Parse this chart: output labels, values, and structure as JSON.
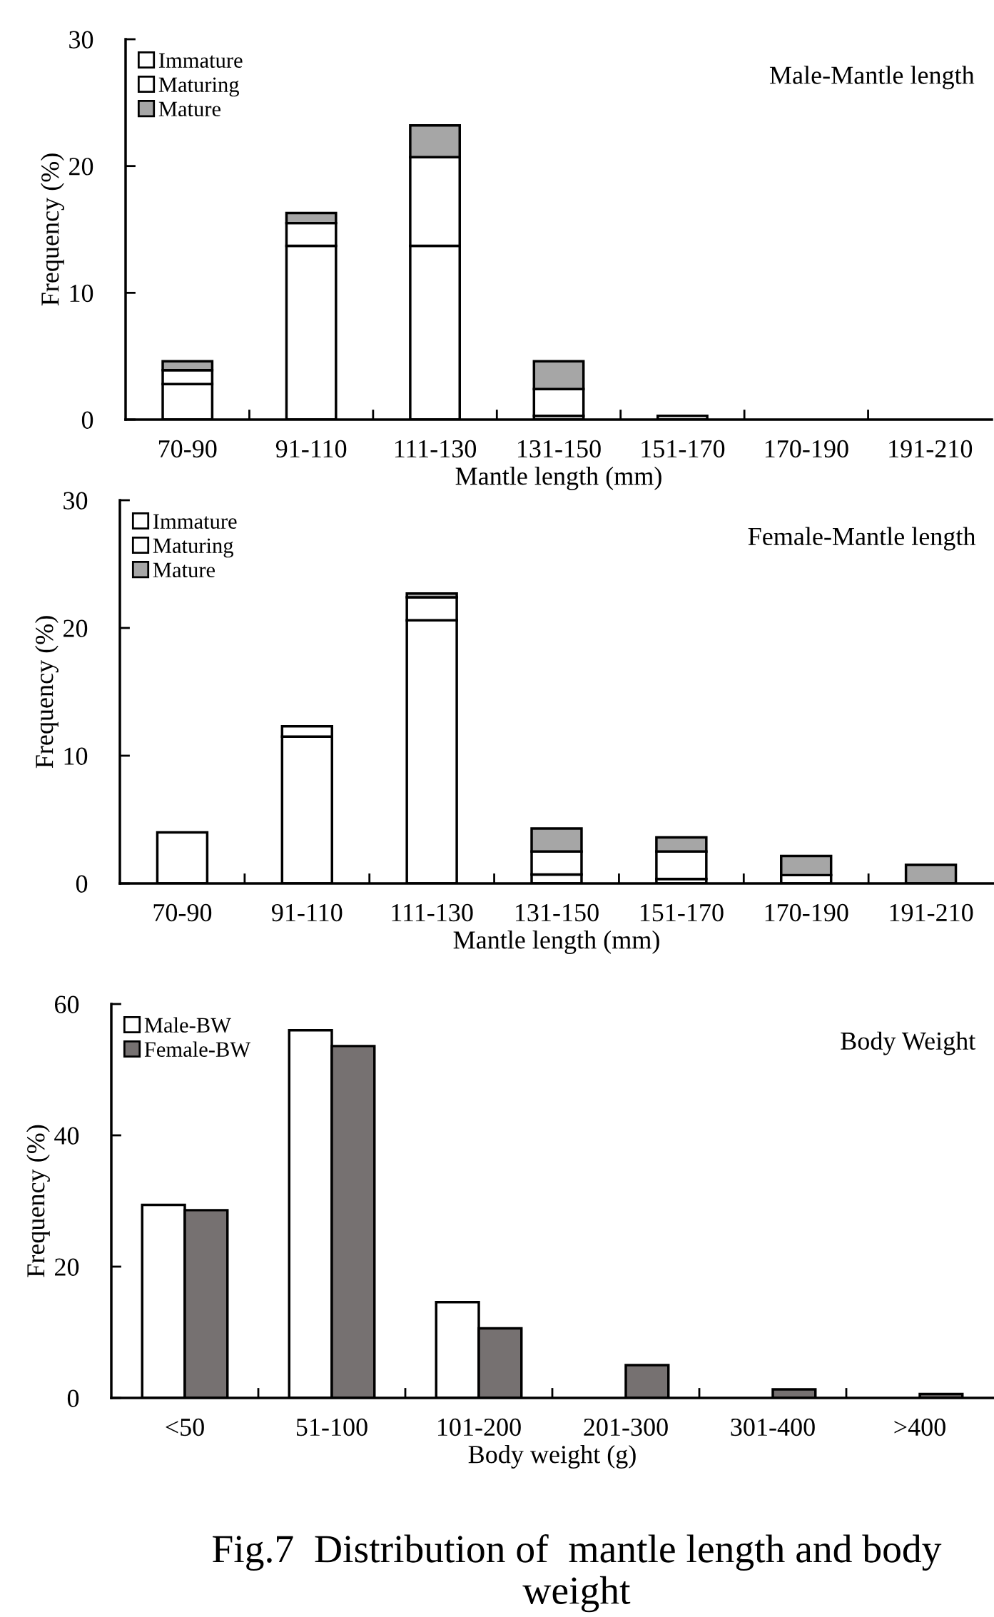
{
  "chart_data": [
    {
      "type": "bar",
      "stacked": true,
      "title": "Male-Mantle length",
      "xlabel": "Mantle length (mm)",
      "ylabel": "Frequency (%)",
      "categories": [
        "70-90",
        "91-110",
        "111-130",
        "131-150",
        "151-170",
        "170-190",
        "191-210"
      ],
      "series": [
        {
          "name": "Immature",
          "color": "#ffffff",
          "values": [
            2.8,
            13.7,
            13.7,
            0.3,
            0.3,
            0,
            0
          ]
        },
        {
          "name": "Maturing",
          "color": "#ffffff",
          "values": [
            1.1,
            1.8,
            7.0,
            2.1,
            0,
            0,
            0
          ]
        },
        {
          "name": "Mature",
          "color": "#a6a6a6",
          "values": [
            0.7,
            0.8,
            2.5,
            2.2,
            0,
            0,
            0
          ]
        }
      ],
      "ylim": [
        0,
        30
      ],
      "yticks": [
        0,
        10,
        20,
        30
      ],
      "legend": "top left",
      "grid": false
    },
    {
      "type": "bar",
      "stacked": true,
      "title": "Female-Mantle length",
      "xlabel": "Mantle length (mm)",
      "ylabel": "Frequency (%)",
      "categories": [
        "70-90",
        "91-110",
        "111-130",
        "131-150",
        "151-170",
        "170-190",
        "191-210"
      ],
      "series": [
        {
          "name": "Immature",
          "color": "#ffffff",
          "values": [
            4.0,
            11.5,
            20.6,
            0.7,
            0.35,
            0.65,
            0
          ]
        },
        {
          "name": "Maturing",
          "color": "#ffffff",
          "values": [
            0,
            0.8,
            1.8,
            1.8,
            2.15,
            0,
            0
          ]
        },
        {
          "name": "Mature",
          "color": "#a6a6a6",
          "values": [
            0,
            0,
            0.3,
            1.8,
            1.1,
            1.5,
            1.45
          ]
        }
      ],
      "ylim": [
        0,
        30
      ],
      "yticks": [
        0,
        10,
        20,
        30
      ],
      "legend": "top left",
      "grid": false
    },
    {
      "type": "bar",
      "title": "Body Weight",
      "xlabel": "Body weight (g)",
      "ylabel": "Frequency (%)",
      "categories": [
        "<50",
        "51-100",
        "101-200",
        "201-300",
        "301-400",
        ">400"
      ],
      "series": [
        {
          "name": "Male-BW",
          "color": "#ffffff",
          "values": [
            29.4,
            56.0,
            14.6,
            0,
            0,
            0
          ]
        },
        {
          "name": "Female-BW",
          "color": "#767171",
          "values": [
            28.6,
            53.6,
            10.6,
            5.0,
            1.3,
            0.6
          ]
        }
      ],
      "ylim": [
        0,
        60
      ],
      "yticks": [
        0,
        20,
        40,
        60
      ],
      "legend": "top left",
      "grid": false,
      "annotations": [
        "Fig.7  Distribution of  mantle length and body weight"
      ]
    }
  ]
}
